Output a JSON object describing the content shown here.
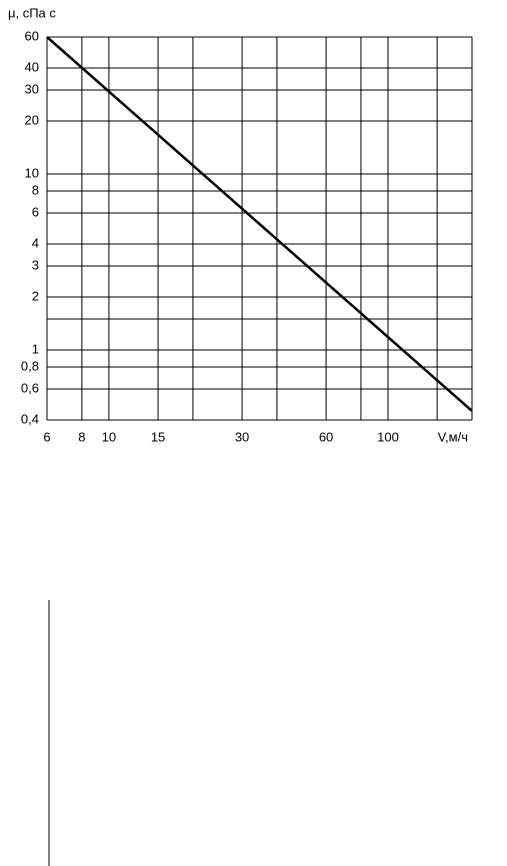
{
  "chart_data": {
    "type": "line",
    "y_label": "μ, сПа с",
    "x_label": "V,м/ч",
    "log_x": true,
    "log_y": true,
    "grid": true,
    "xlim": [
      6,
      200
    ],
    "ylim": [
      0.4,
      60
    ],
    "xticks": [
      6,
      8,
      10,
      15,
      30,
      60,
      100
    ],
    "xgrid": [
      6,
      8,
      10,
      15,
      20,
      30,
      40,
      60,
      80,
      100,
      150,
      200
    ],
    "yticks": [
      60,
      40,
      30,
      20,
      10,
      8,
      6,
      4,
      3,
      2,
      1,
      {
        "value": 0.8,
        "label": "0,8"
      },
      {
        "value": 0.6,
        "label": "0,6"
      },
      {
        "value": 0.4,
        "label": "0,4"
      }
    ],
    "ygrid": [
      60,
      40,
      30,
      20,
      10,
      8,
      6,
      4,
      3,
      2,
      1.5,
      1,
      0.8,
      0.6,
      0.4
    ],
    "series": [
      {
        "color": "#000000",
        "x": [
          6,
          200
        ],
        "values": [
          60,
          0.45
        ]
      }
    ]
  }
}
